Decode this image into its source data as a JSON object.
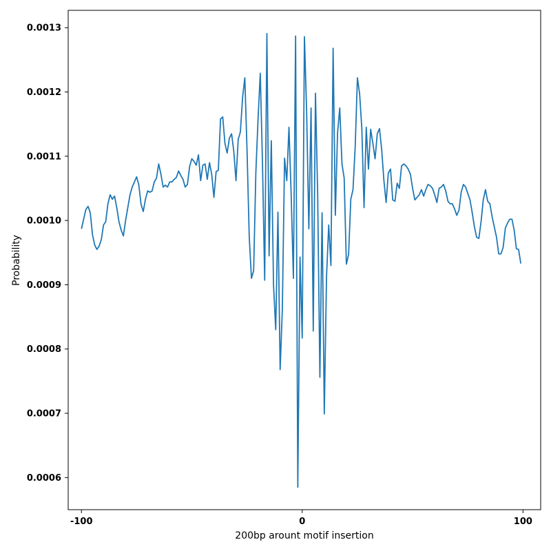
{
  "chart_data": {
    "type": "line",
    "title": "",
    "xlabel": "200bp arount motif insertion",
    "ylabel": "Probability",
    "xlim": [
      -106,
      108
    ],
    "ylim": [
      0.00055,
      0.001327
    ],
    "xticks": [
      -100,
      0,
      100
    ],
    "xtick_labels": [
      "-100",
      "0",
      "100"
    ],
    "yticks": [
      0.0006,
      0.0007,
      0.0008,
      0.0009,
      0.001,
      0.0011,
      0.0012,
      0.0013
    ],
    "ytick_labels": [
      "0.0006",
      "0.0007",
      "0.0008",
      "0.0009",
      "0.0010",
      "0.0011",
      "0.0012",
      "0.0013"
    ],
    "grid": false,
    "line_color": "#1f77b4",
    "series": [
      {
        "x": [
          -100,
          -99,
          -98,
          -97,
          -96,
          -95,
          -94,
          -93,
          -92,
          -91,
          -90,
          -89,
          -88,
          -87,
          -86,
          -85,
          -84,
          -83,
          -82,
          -81,
          -80,
          -79,
          -78,
          -77,
          -76,
          -75,
          -74,
          -73,
          -72,
          -71,
          -70,
          -69,
          -68,
          -67,
          -66,
          -65,
          -64,
          -63,
          -62,
          -61,
          -60,
          -59,
          -58,
          -57,
          -56,
          -55,
          -54,
          -53,
          -52,
          -51,
          -50,
          -49,
          -48,
          -47,
          -46,
          -45,
          -44,
          -43,
          -42,
          -41,
          -40,
          -39,
          -38,
          -37,
          -36,
          -35,
          -34,
          -33,
          -32,
          -31,
          -30,
          -29,
          -28,
          -27,
          -26,
          -25,
          -24,
          -23,
          -22,
          -21,
          -20,
          -19,
          -18,
          -17,
          -16,
          -15,
          -14,
          -13,
          -12,
          -11,
          -10,
          -9,
          -8,
          -7,
          -6,
          -5,
          -4,
          -3,
          -2,
          -1,
          0,
          1,
          2,
          3,
          4,
          5,
          6,
          7,
          8,
          9,
          10,
          11,
          12,
          13,
          14,
          15,
          16,
          17,
          18,
          19,
          20,
          21,
          22,
          23,
          24,
          25,
          26,
          27,
          28,
          29,
          30,
          31,
          32,
          33,
          34,
          35,
          36,
          37,
          38,
          39,
          40,
          41,
          42,
          43,
          44,
          45,
          46,
          47,
          48,
          49,
          50,
          51,
          52,
          53,
          54,
          55,
          56,
          57,
          58,
          59,
          60,
          61,
          62,
          63,
          64,
          65,
          66,
          67,
          68,
          69,
          70,
          71,
          72,
          73,
          74,
          75,
          76,
          77,
          78,
          79,
          80,
          81,
          82,
          83,
          84,
          85,
          86,
          87,
          88,
          89,
          90,
          91,
          92,
          93,
          94,
          95,
          96,
          97,
          98,
          99
        ],
        "values": [
          0.000987,
          0.001002,
          0.001017,
          0.001022,
          0.001012,
          0.000978,
          0.000962,
          0.000955,
          0.00096,
          0.00097,
          0.000993,
          0.000998,
          0.001026,
          0.00104,
          0.001033,
          0.001038,
          0.00102,
          0.000998,
          0.000985,
          0.000976,
          0.001,
          0.00102,
          0.00104,
          0.001052,
          0.00106,
          0.001068,
          0.001055,
          0.001025,
          0.001014,
          0.001033,
          0.001046,
          0.001044,
          0.001046,
          0.00106,
          0.001066,
          0.001088,
          0.001072,
          0.001052,
          0.001055,
          0.001052,
          0.00106,
          0.00106,
          0.001064,
          0.001067,
          0.001077,
          0.00107,
          0.001064,
          0.001052,
          0.001056,
          0.001084,
          0.001096,
          0.001092,
          0.001086,
          0.001102,
          0.001062,
          0.001086,
          0.001088,
          0.001064,
          0.00109,
          0.001072,
          0.001036,
          0.001076,
          0.001078,
          0.001158,
          0.001161,
          0.00112,
          0.001105,
          0.001128,
          0.001135,
          0.001108,
          0.001062,
          0.001126,
          0.001138,
          0.001192,
          0.001222,
          0.00111,
          0.000975,
          0.00091,
          0.000922,
          0.001075,
          0.001158,
          0.001229,
          0.00109,
          0.000907,
          0.001291,
          0.000945,
          0.001124,
          0.0009,
          0.00083,
          0.001013,
          0.000768,
          0.000862,
          0.001097,
          0.001062,
          0.001145,
          0.00104,
          0.00091,
          0.001287,
          0.000585,
          0.000943,
          0.000817,
          0.001286,
          0.00117,
          0.000987,
          0.001175,
          0.000828,
          0.001198,
          0.00104,
          0.000756,
          0.001012,
          0.000699,
          0.000912,
          0.000993,
          0.00093,
          0.001268,
          0.001008,
          0.001136,
          0.001175,
          0.001088,
          0.001066,
          0.000932,
          0.000947,
          0.001033,
          0.001048,
          0.001115,
          0.001222,
          0.001197,
          0.001143,
          0.00102,
          0.001145,
          0.00108,
          0.001142,
          0.00112,
          0.001096,
          0.001135,
          0.001143,
          0.00111,
          0.001062,
          0.001028,
          0.001074,
          0.00108,
          0.001032,
          0.00103,
          0.001058,
          0.00105,
          0.001085,
          0.001088,
          0.001085,
          0.00108,
          0.001072,
          0.00105,
          0.001032,
          0.001036,
          0.00104,
          0.001048,
          0.001038,
          0.001048,
          0.001056,
          0.001054,
          0.00105,
          0.00104,
          0.001028,
          0.00105,
          0.001052,
          0.001056,
          0.001046,
          0.00103,
          0.001026,
          0.001026,
          0.001018,
          0.001008,
          0.001016,
          0.001044,
          0.001056,
          0.001052,
          0.001042,
          0.001032,
          0.001012,
          0.00099,
          0.000974,
          0.000972,
          0.000998,
          0.001032,
          0.001048,
          0.00103,
          0.001026,
          0.001006,
          0.00099,
          0.000974,
          0.000948,
          0.000948,
          0.000958,
          0.000988,
          0.000996,
          0.001002,
          0.001002,
          0.000985,
          0.000956,
          0.000955,
          0.000933
        ]
      }
    ]
  }
}
